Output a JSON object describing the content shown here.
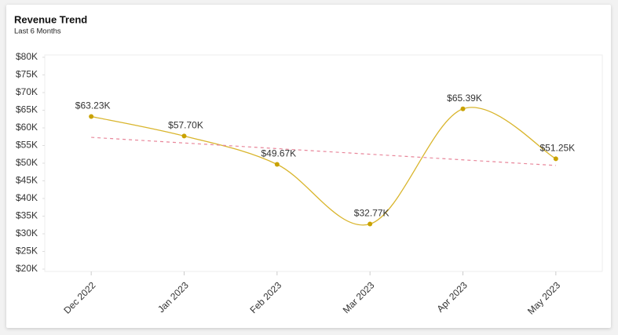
{
  "chart_data": {
    "type": "line",
    "title": "Revenue Trend",
    "subtitle": "Last 6 Months",
    "categories": [
      "Dec 2022",
      "Jan 2023",
      "Feb 2023",
      "Mar 2023",
      "Apr 2023",
      "May 2023"
    ],
    "series": [
      {
        "color": "#d9b52c",
        "values": [
          63230,
          57700,
          49670,
          32770,
          65390,
          51250
        ],
        "value_labels": [
          "$63.23K",
          "$57.70K",
          "$49.67K",
          "$32.77K",
          "$65.39K",
          "$51.25K"
        ]
      },
      {
        "color": "#e8869a",
        "dashed": true,
        "values": [
          57315,
          55723,
          54131,
          52539,
          50947,
          49355
        ]
      }
    ],
    "ylim": [
      20000,
      80000
    ],
    "yticks": [
      {
        "value": 20000,
        "label": "$20K"
      },
      {
        "value": 25000,
        "label": "$25K"
      },
      {
        "value": 30000,
        "label": "$30K"
      },
      {
        "value": 35000,
        "label": "$35K"
      },
      {
        "value": 40000,
        "label": "$40K"
      },
      {
        "value": 45000,
        "label": "$45K"
      },
      {
        "value": 50000,
        "label": "$50K"
      },
      {
        "value": 55000,
        "label": "$55K"
      },
      {
        "value": 60000,
        "label": "$60K"
      },
      {
        "value": 65000,
        "label": "$65K"
      },
      {
        "value": 70000,
        "label": "$70K"
      },
      {
        "value": 75000,
        "label": "$75K"
      },
      {
        "value": 80000,
        "label": "$80K"
      }
    ]
  }
}
